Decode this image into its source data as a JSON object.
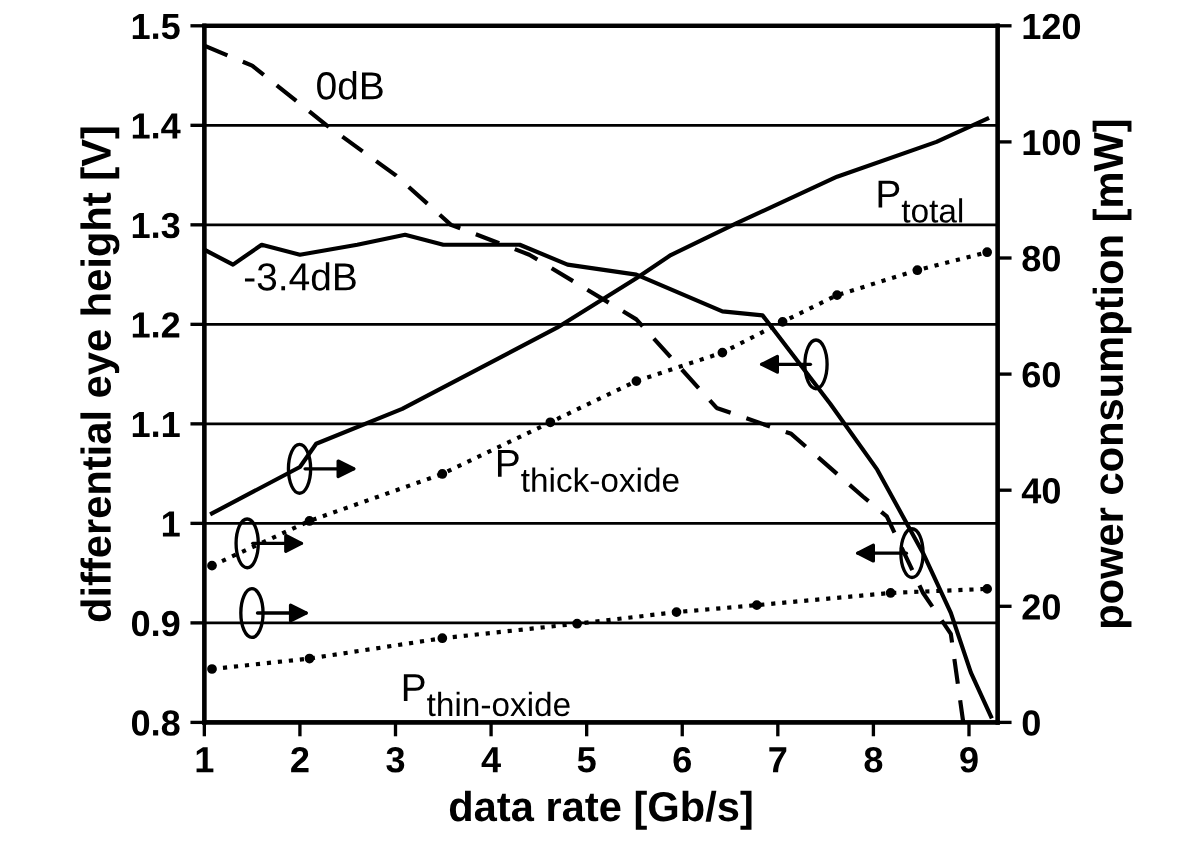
{
  "chart_data": {
    "type": "line",
    "xlabel": "data rate [Gb/s]",
    "ylabel": "differential eye height [V]",
    "y2label": "power consumption [mW]",
    "xlim": [
      1,
      9.3
    ],
    "xticks": [
      1,
      2,
      3,
      4,
      5,
      6,
      7,
      8,
      9
    ],
    "ylim": [
      0.8,
      1.5
    ],
    "yticks": [
      0.8,
      0.9,
      1,
      1.1,
      1.2,
      1.3,
      1.4,
      1.5
    ],
    "y2lim": [
      0,
      120
    ],
    "y2ticks": [
      0,
      20,
      40,
      60,
      80,
      100,
      120
    ],
    "grid": "y",
    "legend": false,
    "series": [
      {
        "name": "0dB",
        "color": "#000000",
        "line_style": "dashed",
        "marker": "none",
        "x": [
          1,
          1.5,
          2.28,
          3.0,
          3.58,
          4.4,
          5.52,
          6.36,
          7.14,
          7.89,
          8.14,
          8.52,
          8.81,
          8.94
        ],
        "values": [
          1.48,
          1.46,
          1.4,
          1.35,
          1.3,
          1.27,
          1.205,
          1.116,
          1.09,
          1.027,
          1.007,
          0.93,
          0.889,
          0.8
        ]
      },
      {
        "name": "-3.4dB",
        "color": "#000000",
        "line_style": "solid",
        "marker": "none",
        "x": [
          1,
          1.3,
          1.6,
          2,
          2.6,
          3.1,
          3.5,
          4.3,
          4.8,
          5.52,
          6.42,
          6.84,
          7.2,
          7.55,
          8.04,
          8.52,
          8.81,
          9.02,
          9.23
        ],
        "values": [
          1.275,
          1.26,
          1.28,
          1.27,
          1.28,
          1.29,
          1.28,
          1.28,
          1.26,
          1.25,
          1.213,
          1.209,
          1.164,
          1.12,
          1.054,
          0.97,
          0.91,
          0.85,
          0.806
        ]
      },
      {
        "name": "P$_{total}$",
        "axis": "y2",
        "color": "#000000",
        "line_style": "solid",
        "marker": "none",
        "x": [
          1.08,
          2.0,
          2.17,
          3.07,
          4.69,
          5.52,
          5.88,
          6.57,
          7.62,
          8.66,
          9.19
        ],
        "values": [
          36,
          44,
          48,
          54,
          68,
          76.5,
          80.5,
          86,
          94,
          100,
          104
        ]
      },
      {
        "name": "P$_{thick-oxide}$",
        "axis": "y2",
        "color": "#000000",
        "line_style": "dotted",
        "marker": "circle",
        "x": [
          1.08,
          2.1,
          3.49,
          4.62,
          5.52,
          6.42,
          7.05,
          7.62,
          8.46,
          9.19
        ],
        "values": [
          27,
          34.7,
          42.8,
          51.7,
          58.8,
          63.7,
          69,
          73.6,
          77.9,
          81
        ]
      },
      {
        "name": "P$_{thin-oxide}$",
        "axis": "y2",
        "color": "#000000",
        "line_style": "dotted",
        "marker": "circle",
        "x": [
          1.08,
          2.1,
          3.49,
          4.9,
          5.94,
          6.78,
          8.18,
          9.19
        ],
        "values": [
          9.2,
          11,
          14.5,
          17,
          19,
          20.2,
          22.3,
          23
        ]
      }
    ]
  }
}
